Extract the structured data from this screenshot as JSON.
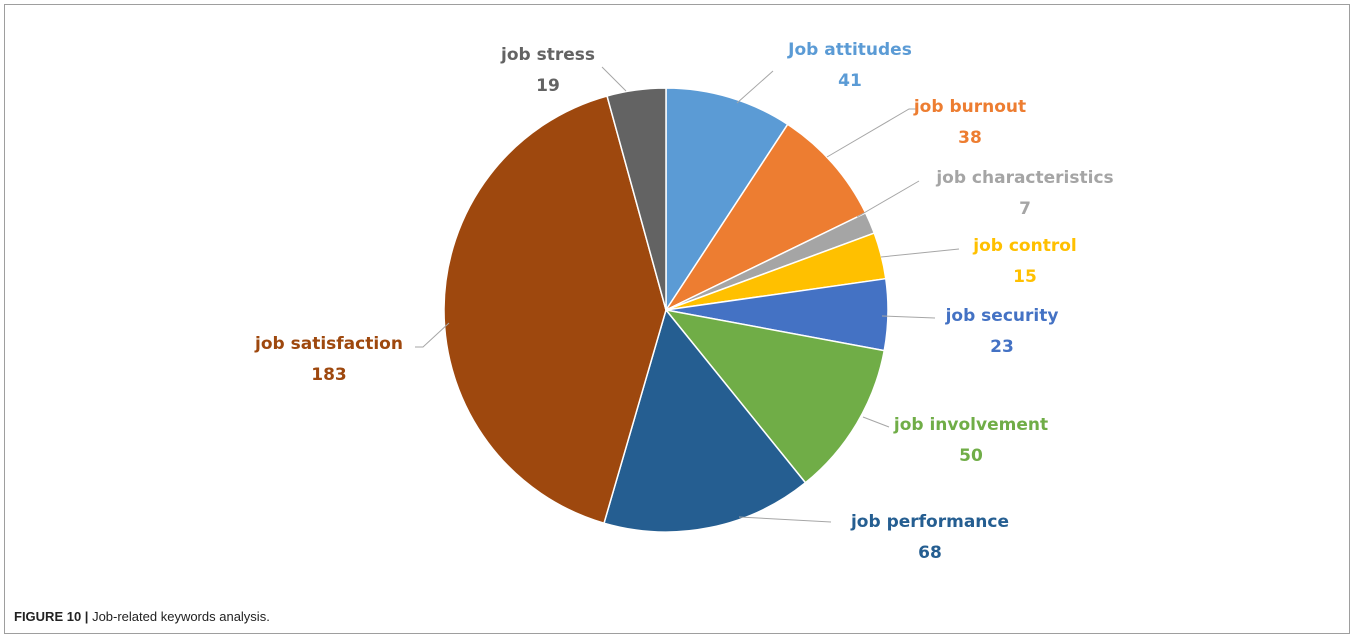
{
  "caption": {
    "label": "FIGURE 10 |",
    "text": "Job-related keywords analysis."
  },
  "chart_data": {
    "type": "pie",
    "slices": [
      {
        "name": "Job attitudes",
        "value": 41,
        "color": "#5B9BD5"
      },
      {
        "name": "job burnout",
        "value": 38,
        "color": "#ED7D31"
      },
      {
        "name": "job characteristics",
        "value": 7,
        "color": "#A5A5A5"
      },
      {
        "name": "job control",
        "value": 15,
        "color": "#FFC000"
      },
      {
        "name": "job security",
        "value": 23,
        "color": "#4472C4"
      },
      {
        "name": "job involvement",
        "value": 50,
        "color": "#70AD47"
      },
      {
        "name": "job performance",
        "value": 68,
        "color": "#255E91"
      },
      {
        "name": "job satisfaction",
        "value": 183,
        "color": "#9E480E"
      },
      {
        "name": "job stress",
        "value": 19,
        "color": "#636363"
      }
    ],
    "label_colors": {
      "Job attitudes": "#5B9BD5",
      "job burnout": "#ED7D31",
      "job characteristics": "#A5A5A5",
      "job control": "#FFC000",
      "job security": "#4472C4",
      "job involvement": "#70AD47",
      "job performance": "#255E91",
      "job satisfaction": "#9E480E",
      "job stress": "#636363"
    }
  }
}
